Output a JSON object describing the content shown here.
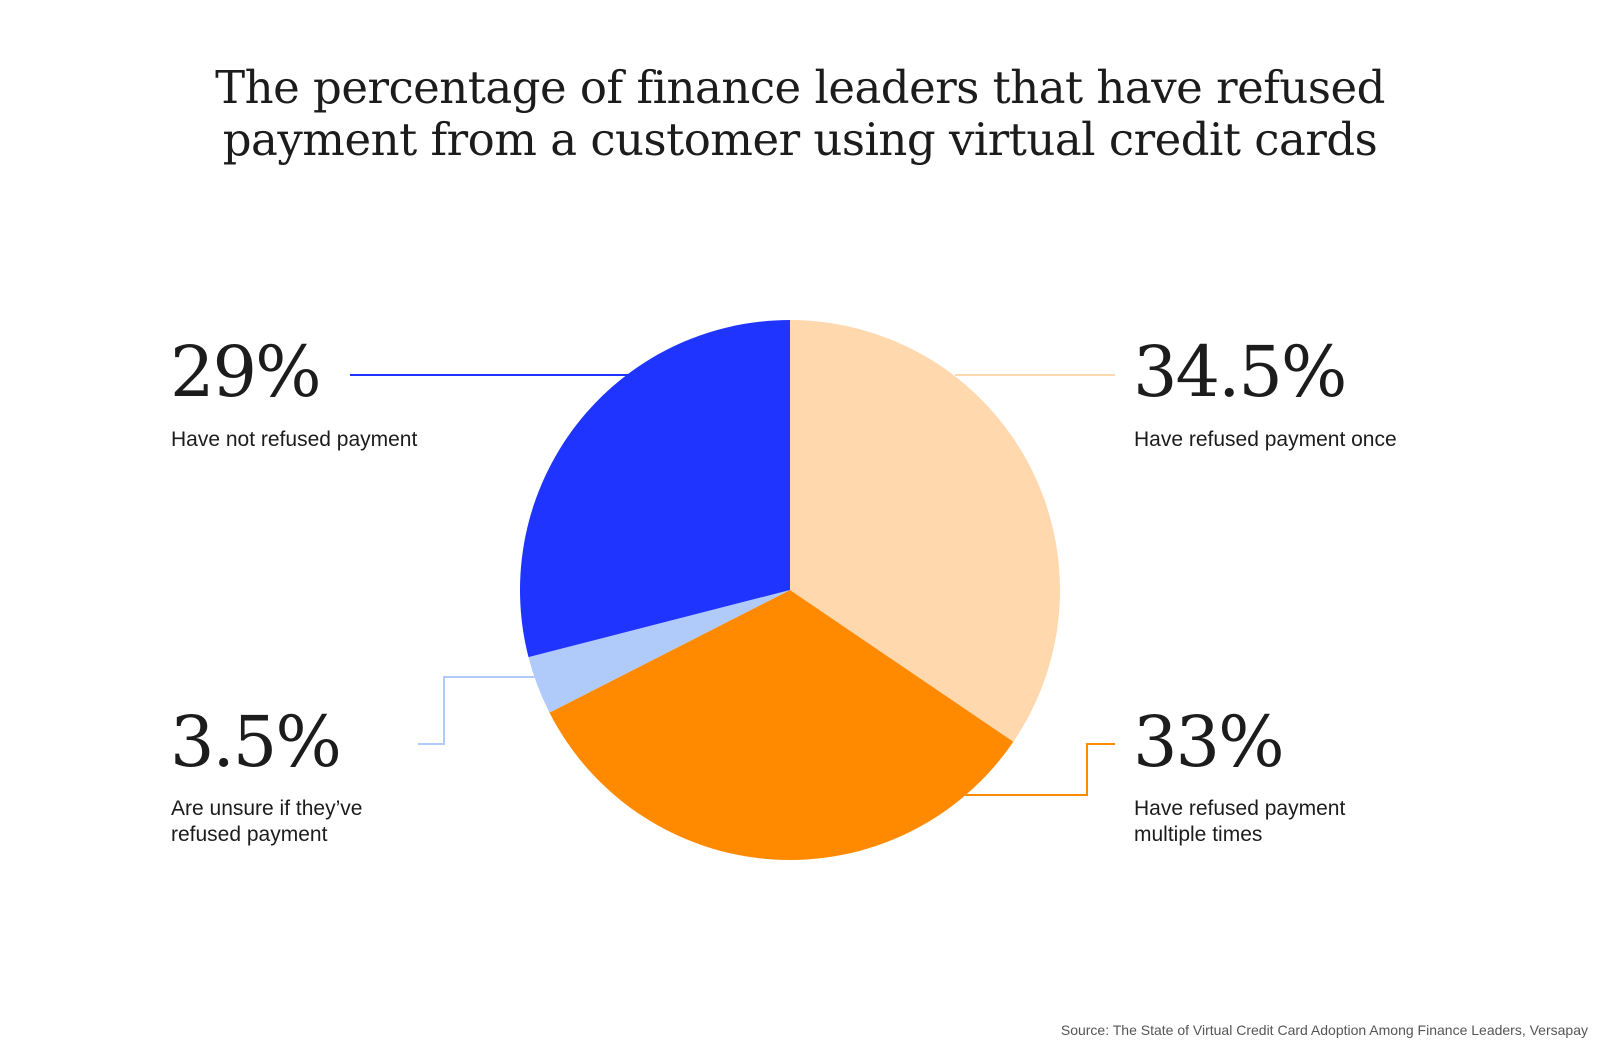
{
  "chart_data": {
    "type": "pie",
    "title_lines": [
      "The percentage of finance leaders that have refused",
      "payment from a customer using virtual credit cards"
    ],
    "slices": [
      {
        "label": "Have refused payment once",
        "value": 34.5,
        "display": "34.5%",
        "color": "#FFD8AE"
      },
      {
        "label": "Have refused payment multiple times",
        "label_lines": [
          "Have refused payment",
          "multiple times"
        ],
        "value": 33,
        "display": "33%",
        "color": "#FF8A00"
      },
      {
        "label": "Are unsure if they’ve refused payment",
        "label_lines": [
          "Are unsure if they’ve",
          "refused payment"
        ],
        "value": 3.5,
        "display": "3.5%",
        "color": "#B0CBFA"
      },
      {
        "label": "Have not refused payment",
        "value": 29,
        "display": "29%",
        "color": "#1F35FF"
      }
    ],
    "start_angle": "12 o'clock",
    "direction": "clockwise",
    "source": "Source: The State of Virtual Credit Card Adoption Among Finance Leaders, Versapay"
  }
}
